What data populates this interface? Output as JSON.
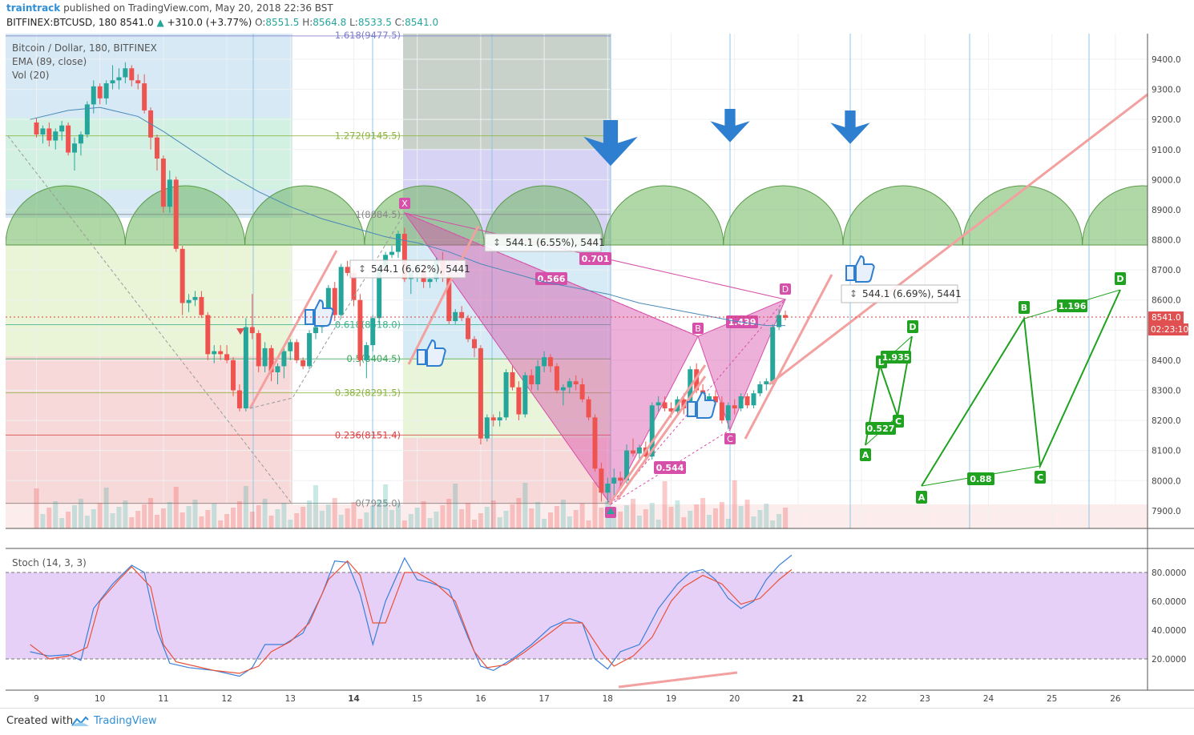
{
  "header": {
    "brand": "traintrack",
    "published": "published on TradingView.com, May 20, 2018 22:36 BST",
    "symbol": "BITFINEX:BTCUSD, 180",
    "last": "8541.0",
    "change": "+310.0 (+3.77%)",
    "o_label": "O:",
    "o": "8551.5",
    "h_label": "H:",
    "h": "8564.8",
    "l_label": "L:",
    "l": "8533.5",
    "c_label": "C:",
    "c": "8541.0"
  },
  "legend": {
    "title": "Bitcoin / Dollar, 180, BITFINEX",
    "ema": "EMA (89, close)",
    "vol": "Vol (20)",
    "stoch": "Stoch (14, 3, 3)"
  },
  "price_badge": "8541.0",
  "time_badge": "02:23:10",
  "measures": [
    "544.1 (6.55%), 5441",
    "544.1 (6.69%), 5441",
    "544.1 (6.62%), 5441"
  ],
  "fib_labels": [
    "1.618(9477.5)",
    "1.272(9145.5)",
    "1(8884.5)",
    "0.618(8518.0)",
    "0.5(8404.5)",
    "0.382(8291.5)",
    "0.236(8151.4)",
    "0(7925.0)"
  ],
  "pattern_labels": {
    "main": [
      "X",
      "B",
      "C",
      "D"
    ],
    "ratios": [
      "0.701",
      "0.566",
      "1.439",
      "0.544"
    ],
    "green1": [
      "A",
      "B",
      "C",
      "D"
    ],
    "green1_ratios": [
      "1.935",
      "0.527"
    ],
    "green2": [
      "A",
      "B",
      "C",
      "D"
    ],
    "green2_ratios": [
      "1.196",
      "0.88"
    ]
  },
  "footer": {
    "created": "Created with",
    "brand": "TradingView"
  },
  "colors": {
    "up": "#26a69a",
    "down": "#ef5350",
    "ema": "#4a8ab8",
    "pattern": "#d64fa8",
    "green": "#1fa21f",
    "stoch_k": "#3a7fd8",
    "stoch_d": "#e8523a"
  },
  "chart_data": {
    "type": "candlestick",
    "x_tick_labels": [
      "9",
      "10",
      "11",
      "12",
      "13",
      "14",
      "15",
      "16",
      "17",
      "18",
      "19",
      "20",
      "21",
      "22",
      "23",
      "24",
      "25",
      "26"
    ],
    "y_tick_labels": [
      "9400.0",
      "9300.0",
      "9200.0",
      "9100.0",
      "9000.0",
      "8900.0",
      "8800.0",
      "8700.0",
      "8600.0",
      "8500.0",
      "8400.0",
      "8300.0",
      "8200.0",
      "8100.0",
      "8000.0",
      "7900.0"
    ],
    "ylim": [
      7845,
      9470
    ],
    "stoch_tick_labels": [
      "80.0000",
      "60.0000",
      "40.0000",
      "20.0000"
    ],
    "stoch_ylim": [
      0,
      100
    ],
    "fib_levels": [
      {
        "ratio": "1.618",
        "price": 9477.5
      },
      {
        "ratio": "1.272",
        "price": 9145.5
      },
      {
        "ratio": "1",
        "price": 8884.5
      },
      {
        "ratio": "0.618",
        "price": 8518.0
      },
      {
        "ratio": "0.5",
        "price": 8404.5
      },
      {
        "ratio": "0.382",
        "price": 8291.5
      },
      {
        "ratio": "0.236",
        "price": 8151.4
      },
      {
        "ratio": "0",
        "price": 7925.0
      }
    ],
    "candles": [
      [
        9.0,
        9190,
        9205,
        9140,
        9150
      ],
      [
        9.1,
        9150,
        9180,
        9120,
        9170
      ],
      [
        9.2,
        9170,
        9190,
        9110,
        9130
      ],
      [
        9.3,
        9130,
        9170,
        9100,
        9160
      ],
      [
        9.4,
        9160,
        9195,
        9130,
        9180
      ],
      [
        9.5,
        9180,
        9190,
        9080,
        9090
      ],
      [
        9.6,
        9090,
        9140,
        9030,
        9120
      ],
      [
        9.7,
        9120,
        9160,
        9080,
        9150
      ],
      [
        9.8,
        9150,
        9260,
        9140,
        9250
      ],
      [
        9.9,
        9250,
        9330,
        9220,
        9310
      ],
      [
        10.0,
        9310,
        9320,
        9250,
        9270
      ],
      [
        10.1,
        9270,
        9330,
        9250,
        9320
      ],
      [
        10.2,
        9320,
        9380,
        9300,
        9330
      ],
      [
        10.3,
        9330,
        9370,
        9300,
        9340
      ],
      [
        10.4,
        9340,
        9390,
        9320,
        9370
      ],
      [
        10.5,
        9370,
        9380,
        9310,
        9330
      ],
      [
        10.6,
        9330,
        9350,
        9300,
        9320
      ],
      [
        10.7,
        9320,
        9350,
        9220,
        9230
      ],
      [
        10.8,
        9230,
        9240,
        9100,
        9140
      ],
      [
        10.9,
        9140,
        9150,
        9030,
        9070
      ],
      [
        11.0,
        9070,
        9080,
        8890,
        8910
      ],
      [
        11.1,
        8910,
        9030,
        8890,
        9000
      ],
      [
        11.2,
        9000,
        9010,
        8760,
        8770
      ],
      [
        11.3,
        8770,
        8780,
        8550,
        8590
      ],
      [
        11.4,
        8590,
        8620,
        8560,
        8600
      ],
      [
        11.5,
        8600,
        8630,
        8580,
        8610
      ],
      [
        11.6,
        8610,
        8630,
        8540,
        8550
      ],
      [
        11.7,
        8550,
        8560,
        8400,
        8420
      ],
      [
        11.8,
        8420,
        8450,
        8390,
        8430
      ],
      [
        11.9,
        8430,
        8450,
        8400,
        8420
      ],
      [
        12.0,
        8420,
        8450,
        8390,
        8400
      ],
      [
        12.1,
        8400,
        8410,
        8280,
        8300
      ],
      [
        12.2,
        8300,
        8320,
        8230,
        8240
      ],
      [
        12.3,
        8240,
        8540,
        8230,
        8510
      ],
      [
        12.4,
        8510,
        8620,
        8470,
        8490
      ],
      [
        12.5,
        8490,
        8500,
        8360,
        8380
      ],
      [
        12.6,
        8380,
        8460,
        8360,
        8440
      ],
      [
        12.7,
        8440,
        8450,
        8330,
        8360
      ],
      [
        12.8,
        8360,
        8390,
        8320,
        8380
      ],
      [
        12.9,
        8380,
        8440,
        8340,
        8430
      ],
      [
        13.0,
        8430,
        8470,
        8400,
        8460
      ],
      [
        13.1,
        8460,
        8470,
        8390,
        8400
      ],
      [
        13.2,
        8400,
        8410,
        8370,
        8380
      ],
      [
        13.3,
        8380,
        8500,
        8370,
        8490
      ],
      [
        13.4,
        8490,
        8530,
        8470,
        8510
      ],
      [
        13.5,
        8510,
        8580,
        8490,
        8570
      ],
      [
        13.6,
        8570,
        8650,
        8540,
        8640
      ],
      [
        13.7,
        8640,
        8660,
        8530,
        8550
      ],
      [
        13.8,
        8550,
        8720,
        8540,
        8710
      ],
      [
        13.9,
        8710,
        8730,
        8680,
        8690
      ],
      [
        14.0,
        8690,
        8710,
        8580,
        8600
      ],
      [
        14.1,
        8600,
        8620,
        8380,
        8400
      ],
      [
        14.2,
        8400,
        8460,
        8340,
        8450
      ],
      [
        14.3,
        8450,
        8550,
        8430,
        8540
      ],
      [
        14.4,
        8540,
        8720,
        8520,
        8710
      ],
      [
        14.5,
        8710,
        8760,
        8690,
        8750
      ],
      [
        14.6,
        8750,
        8780,
        8740,
        8760
      ],
      [
        14.7,
        8760,
        8830,
        8740,
        8820
      ],
      [
        14.8,
        8820,
        8840,
        8660,
        8670
      ],
      [
        14.9,
        8670,
        8700,
        8620,
        8690
      ],
      [
        15.0,
        8690,
        8710,
        8660,
        8700
      ],
      [
        15.1,
        8700,
        8720,
        8640,
        8660
      ],
      [
        15.2,
        8660,
        8680,
        8640,
        8670
      ],
      [
        15.3,
        8670,
        8740,
        8660,
        8730
      ],
      [
        15.4,
        8730,
        8760,
        8660,
        8680
      ],
      [
        15.5,
        8680,
        8700,
        8520,
        8530
      ],
      [
        15.6,
        8530,
        8570,
        8520,
        8560
      ],
      [
        15.7,
        8560,
        8580,
        8530,
        8540
      ],
      [
        15.8,
        8540,
        8550,
        8460,
        8470
      ],
      [
        15.9,
        8470,
        8480,
        8410,
        8440
      ],
      [
        16.0,
        8440,
        8450,
        8120,
        8140
      ],
      [
        16.1,
        8140,
        8220,
        8130,
        8210
      ],
      [
        16.2,
        8210,
        8220,
        8180,
        8200
      ],
      [
        16.3,
        8200,
        8230,
        8180,
        8210
      ],
      [
        16.4,
        8210,
        8370,
        8200,
        8360
      ],
      [
        16.5,
        8360,
        8380,
        8300,
        8310
      ],
      [
        16.6,
        8310,
        8330,
        8200,
        8220
      ],
      [
        16.7,
        8220,
        8360,
        8210,
        8350
      ],
      [
        16.8,
        8350,
        8370,
        8300,
        8320
      ],
      [
        16.9,
        8320,
        8400,
        8300,
        8380
      ],
      [
        17.0,
        8380,
        8430,
        8360,
        8410
      ],
      [
        17.1,
        8410,
        8420,
        8360,
        8380
      ],
      [
        17.2,
        8380,
        8390,
        8290,
        8300
      ],
      [
        17.3,
        8300,
        8320,
        8250,
        8310
      ],
      [
        17.4,
        8310,
        8340,
        8290,
        8330
      ],
      [
        17.5,
        8330,
        8350,
        8300,
        8320
      ],
      [
        17.6,
        8320,
        8340,
        8260,
        8270
      ],
      [
        17.7,
        8270,
        8280,
        8200,
        8210
      ],
      [
        17.8,
        8210,
        8220,
        8030,
        8040
      ],
      [
        17.9,
        8040,
        8060,
        7930,
        7960
      ],
      [
        18.0,
        7960,
        8010,
        7925,
        7990
      ],
      [
        18.1,
        7990,
        8040,
        7950,
        8010
      ],
      [
        18.2,
        8010,
        8030,
        7980,
        8000
      ],
      [
        18.3,
        8000,
        8120,
        7990,
        8100
      ],
      [
        18.4,
        8100,
        8140,
        8080,
        8090
      ],
      [
        18.5,
        8090,
        8120,
        8060,
        8110
      ],
      [
        18.6,
        8110,
        8130,
        8060,
        8080
      ],
      [
        18.7,
        8080,
        8260,
        8070,
        8250
      ],
      [
        18.8,
        8250,
        8280,
        8230,
        8260
      ],
      [
        18.9,
        8260,
        8280,
        8230,
        8240
      ],
      [
        19.0,
        8240,
        8260,
        8210,
        8230
      ],
      [
        19.1,
        8230,
        8280,
        8220,
        8270
      ],
      [
        19.2,
        8270,
        8290,
        8220,
        8240
      ],
      [
        19.3,
        8240,
        8380,
        8230,
        8370
      ],
      [
        19.4,
        8370,
        8390,
        8290,
        8300
      ],
      [
        19.5,
        8300,
        8320,
        8230,
        8250
      ],
      [
        19.6,
        8250,
        8290,
        8240,
        8280
      ],
      [
        19.7,
        8280,
        8300,
        8250,
        8260
      ],
      [
        19.8,
        8260,
        8280,
        8190,
        8200
      ],
      [
        19.9,
        8200,
        8260,
        8170,
        8250
      ],
      [
        20.0,
        8250,
        8270,
        8220,
        8240
      ],
      [
        20.1,
        8240,
        8290,
        8230,
        8280
      ],
      [
        20.2,
        8280,
        8290,
        8240,
        8250
      ],
      [
        20.3,
        8250,
        8300,
        8240,
        8290
      ],
      [
        20.4,
        8290,
        8330,
        8280,
        8320
      ],
      [
        20.5,
        8320,
        8340,
        8300,
        8330
      ],
      [
        20.6,
        8330,
        8520,
        8320,
        8510
      ],
      [
        20.7,
        8510,
        8570,
        8500,
        8550
      ],
      [
        20.8,
        8550,
        8565,
        8533,
        8541
      ]
    ],
    "ema": [
      [
        8.9,
        9200
      ],
      [
        9.5,
        9230
      ],
      [
        10.0,
        9240
      ],
      [
        10.6,
        9210
      ],
      [
        11.0,
        9160
      ],
      [
        11.5,
        9090
      ],
      [
        12.0,
        9020
      ],
      [
        12.5,
        8960
      ],
      [
        13.0,
        8910
      ],
      [
        13.5,
        8870
      ],
      [
        14.0,
        8840
      ],
      [
        14.5,
        8810
      ],
      [
        15.0,
        8790
      ],
      [
        15.5,
        8760
      ],
      [
        16.0,
        8720
      ],
      [
        16.5,
        8690
      ],
      [
        17.0,
        8660
      ],
      [
        17.5,
        8640
      ],
      [
        18.0,
        8620
      ],
      [
        18.5,
        8590
      ],
      [
        19.0,
        8570
      ],
      [
        19.5,
        8550
      ],
      [
        20.0,
        8530
      ],
      [
        20.5,
        8515
      ],
      [
        20.8,
        8515
      ]
    ],
    "stoch_k": [
      [
        8.9,
        25
      ],
      [
        9.2,
        22
      ],
      [
        9.5,
        23
      ],
      [
        9.7,
        19
      ],
      [
        9.9,
        55
      ],
      [
        10.2,
        72
      ],
      [
        10.5,
        85
      ],
      [
        10.7,
        80
      ],
      [
        10.9,
        40
      ],
      [
        11.1,
        17
      ],
      [
        11.4,
        14
      ],
      [
        11.8,
        12
      ],
      [
        12.2,
        8
      ],
      [
        12.4,
        14
      ],
      [
        12.6,
        30
      ],
      [
        12.9,
        30
      ],
      [
        13.2,
        38
      ],
      [
        13.5,
        65
      ],
      [
        13.7,
        88
      ],
      [
        13.9,
        87
      ],
      [
        14.1,
        65
      ],
      [
        14.3,
        30
      ],
      [
        14.5,
        60
      ],
      [
        14.8,
        90
      ],
      [
        15.0,
        75
      ],
      [
        15.2,
        73
      ],
      [
        15.5,
        68
      ],
      [
        15.8,
        35
      ],
      [
        16.0,
        15
      ],
      [
        16.2,
        12
      ],
      [
        16.5,
        20
      ],
      [
        16.8,
        30
      ],
      [
        17.1,
        42
      ],
      [
        17.4,
        48
      ],
      [
        17.6,
        45
      ],
      [
        17.8,
        20
      ],
      [
        18.0,
        13
      ],
      [
        18.2,
        25
      ],
      [
        18.5,
        30
      ],
      [
        18.8,
        55
      ],
      [
        19.1,
        72
      ],
      [
        19.3,
        80
      ],
      [
        19.5,
        82
      ],
      [
        19.7,
        75
      ],
      [
        19.9,
        62
      ],
      [
        20.1,
        55
      ],
      [
        20.3,
        60
      ],
      [
        20.5,
        75
      ],
      [
        20.7,
        85
      ],
      [
        20.9,
        92
      ]
    ],
    "stoch_d": [
      [
        8.9,
        30
      ],
      [
        9.2,
        20
      ],
      [
        9.5,
        22
      ],
      [
        9.8,
        28
      ],
      [
        10.0,
        60
      ],
      [
        10.3,
        75
      ],
      [
        10.5,
        84
      ],
      [
        10.8,
        70
      ],
      [
        11.0,
        30
      ],
      [
        11.2,
        18
      ],
      [
        11.5,
        15
      ],
      [
        11.8,
        12
      ],
      [
        12.2,
        10
      ],
      [
        12.5,
        15
      ],
      [
        12.7,
        25
      ],
      [
        13.0,
        32
      ],
      [
        13.3,
        45
      ],
      [
        13.6,
        75
      ],
      [
        13.9,
        88
      ],
      [
        14.1,
        78
      ],
      [
        14.3,
        45
      ],
      [
        14.5,
        45
      ],
      [
        14.8,
        80
      ],
      [
        15.0,
        80
      ],
      [
        15.3,
        72
      ],
      [
        15.6,
        60
      ],
      [
        15.9,
        25
      ],
      [
        16.1,
        14
      ],
      [
        16.4,
        16
      ],
      [
        16.7,
        25
      ],
      [
        17.0,
        35
      ],
      [
        17.3,
        45
      ],
      [
        17.6,
        45
      ],
      [
        17.9,
        25
      ],
      [
        18.1,
        15
      ],
      [
        18.4,
        22
      ],
      [
        18.7,
        35
      ],
      [
        19.0,
        60
      ],
      [
        19.2,
        70
      ],
      [
        19.5,
        78
      ],
      [
        19.8,
        72
      ],
      [
        20.1,
        58
      ],
      [
        20.4,
        62
      ],
      [
        20.7,
        75
      ],
      [
        20.9,
        82
      ]
    ]
  }
}
